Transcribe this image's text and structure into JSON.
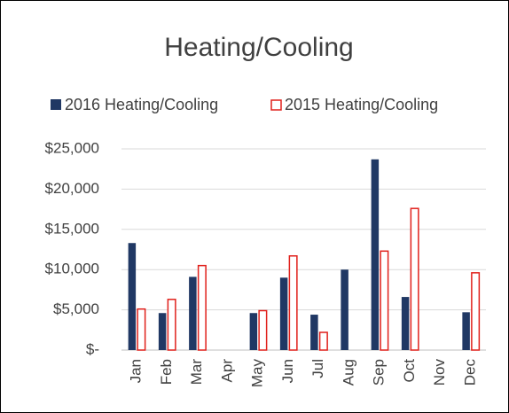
{
  "chart_data": {
    "type": "bar",
    "title": "Heating/Cooling",
    "categories": [
      "Jan",
      "Feb",
      "Mar",
      "Apr",
      "May",
      "Jun",
      "Jul",
      "Aug",
      "Sep",
      "Oct",
      "Nov",
      "Dec"
    ],
    "series": [
      {
        "name": "2016 Heating/Cooling",
        "color": "#203864",
        "values": [
          13300,
          4600,
          9100,
          null,
          4600,
          9000,
          4400,
          10000,
          23700,
          6600,
          null,
          4700
        ]
      },
      {
        "name": "2015 Heating/Cooling",
        "color": "#e0201b",
        "values": [
          5100,
          6300,
          10500,
          null,
          4900,
          11700,
          2200,
          null,
          12300,
          17600,
          null,
          9600
        ]
      }
    ],
    "ylim": [
      0,
      25000
    ],
    "yticks": [
      {
        "value": 0,
        "label": "$-"
      },
      {
        "value": 5000,
        "label": "$5,000"
      },
      {
        "value": 10000,
        "label": "$10,000"
      },
      {
        "value": 15000,
        "label": "$15,000"
      },
      {
        "value": 20000,
        "label": "$20,000"
      },
      {
        "value": 25000,
        "label": "$25,000"
      }
    ],
    "grid": true
  }
}
